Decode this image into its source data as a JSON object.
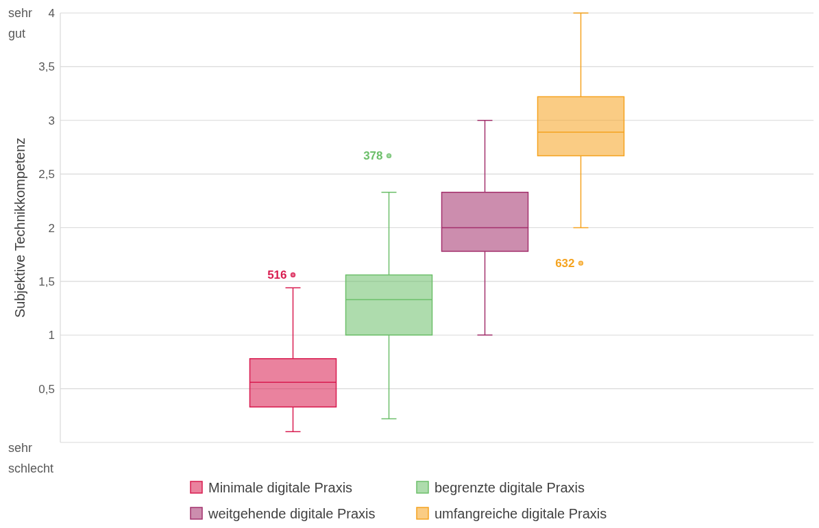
{
  "chart_data": {
    "type": "box",
    "ylabel": "Subjektive Technikkompetenz",
    "categories": [
      null
    ],
    "ylim": [
      0,
      4
    ],
    "yticks": [
      {
        "value": 0,
        "label": null
      },
      {
        "value": 0.5,
        "label": "0,5"
      },
      1,
      {
        "value": 1.5,
        "label": "1,5"
      },
      2,
      {
        "value": 2.5,
        "label": "2,5"
      },
      3,
      {
        "value": 3.5,
        "label": "3,5"
      },
      4
    ],
    "grid": "y",
    "legend": "bottom",
    "series": [
      {
        "name": "Minimale digitale Praxis",
        "color": "#d81b4f",
        "boxes": [
          {
            "low": 0.1,
            "q1": 0.33,
            "median": 0.56,
            "q3": 0.78,
            "high": 1.44,
            "outliers": [
              1.56
            ]
          }
        ]
      },
      {
        "name": "begrenzte digitale Praxis",
        "color": "#6cbf6a",
        "boxes": [
          {
            "low": 0.22,
            "q1": 1.0,
            "median": 1.33,
            "q3": 1.56,
            "high": 2.33,
            "outliers": [
              2.67
            ]
          }
        ]
      },
      {
        "name": "weitgehende digitale Praxis",
        "color": "#a3306c",
        "boxes": [
          {
            "low": 1.0,
            "q1": 1.78,
            "median": 2.0,
            "q3": 2.33,
            "high": 3.0
          }
        ]
      },
      {
        "name": "umfangreiche digitale Praxis",
        "color": "#f5a31f",
        "boxes": [
          {
            "low": 2.0,
            "q1": 2.67,
            "median": 2.89,
            "q3": 3.22,
            "high": 4.0,
            "outliers": [
              1.67
            ]
          }
        ]
      }
    ],
    "annotations": [
      "516",
      "378",
      "632",
      "sehr gut",
      "sehr schlecht"
    ]
  }
}
